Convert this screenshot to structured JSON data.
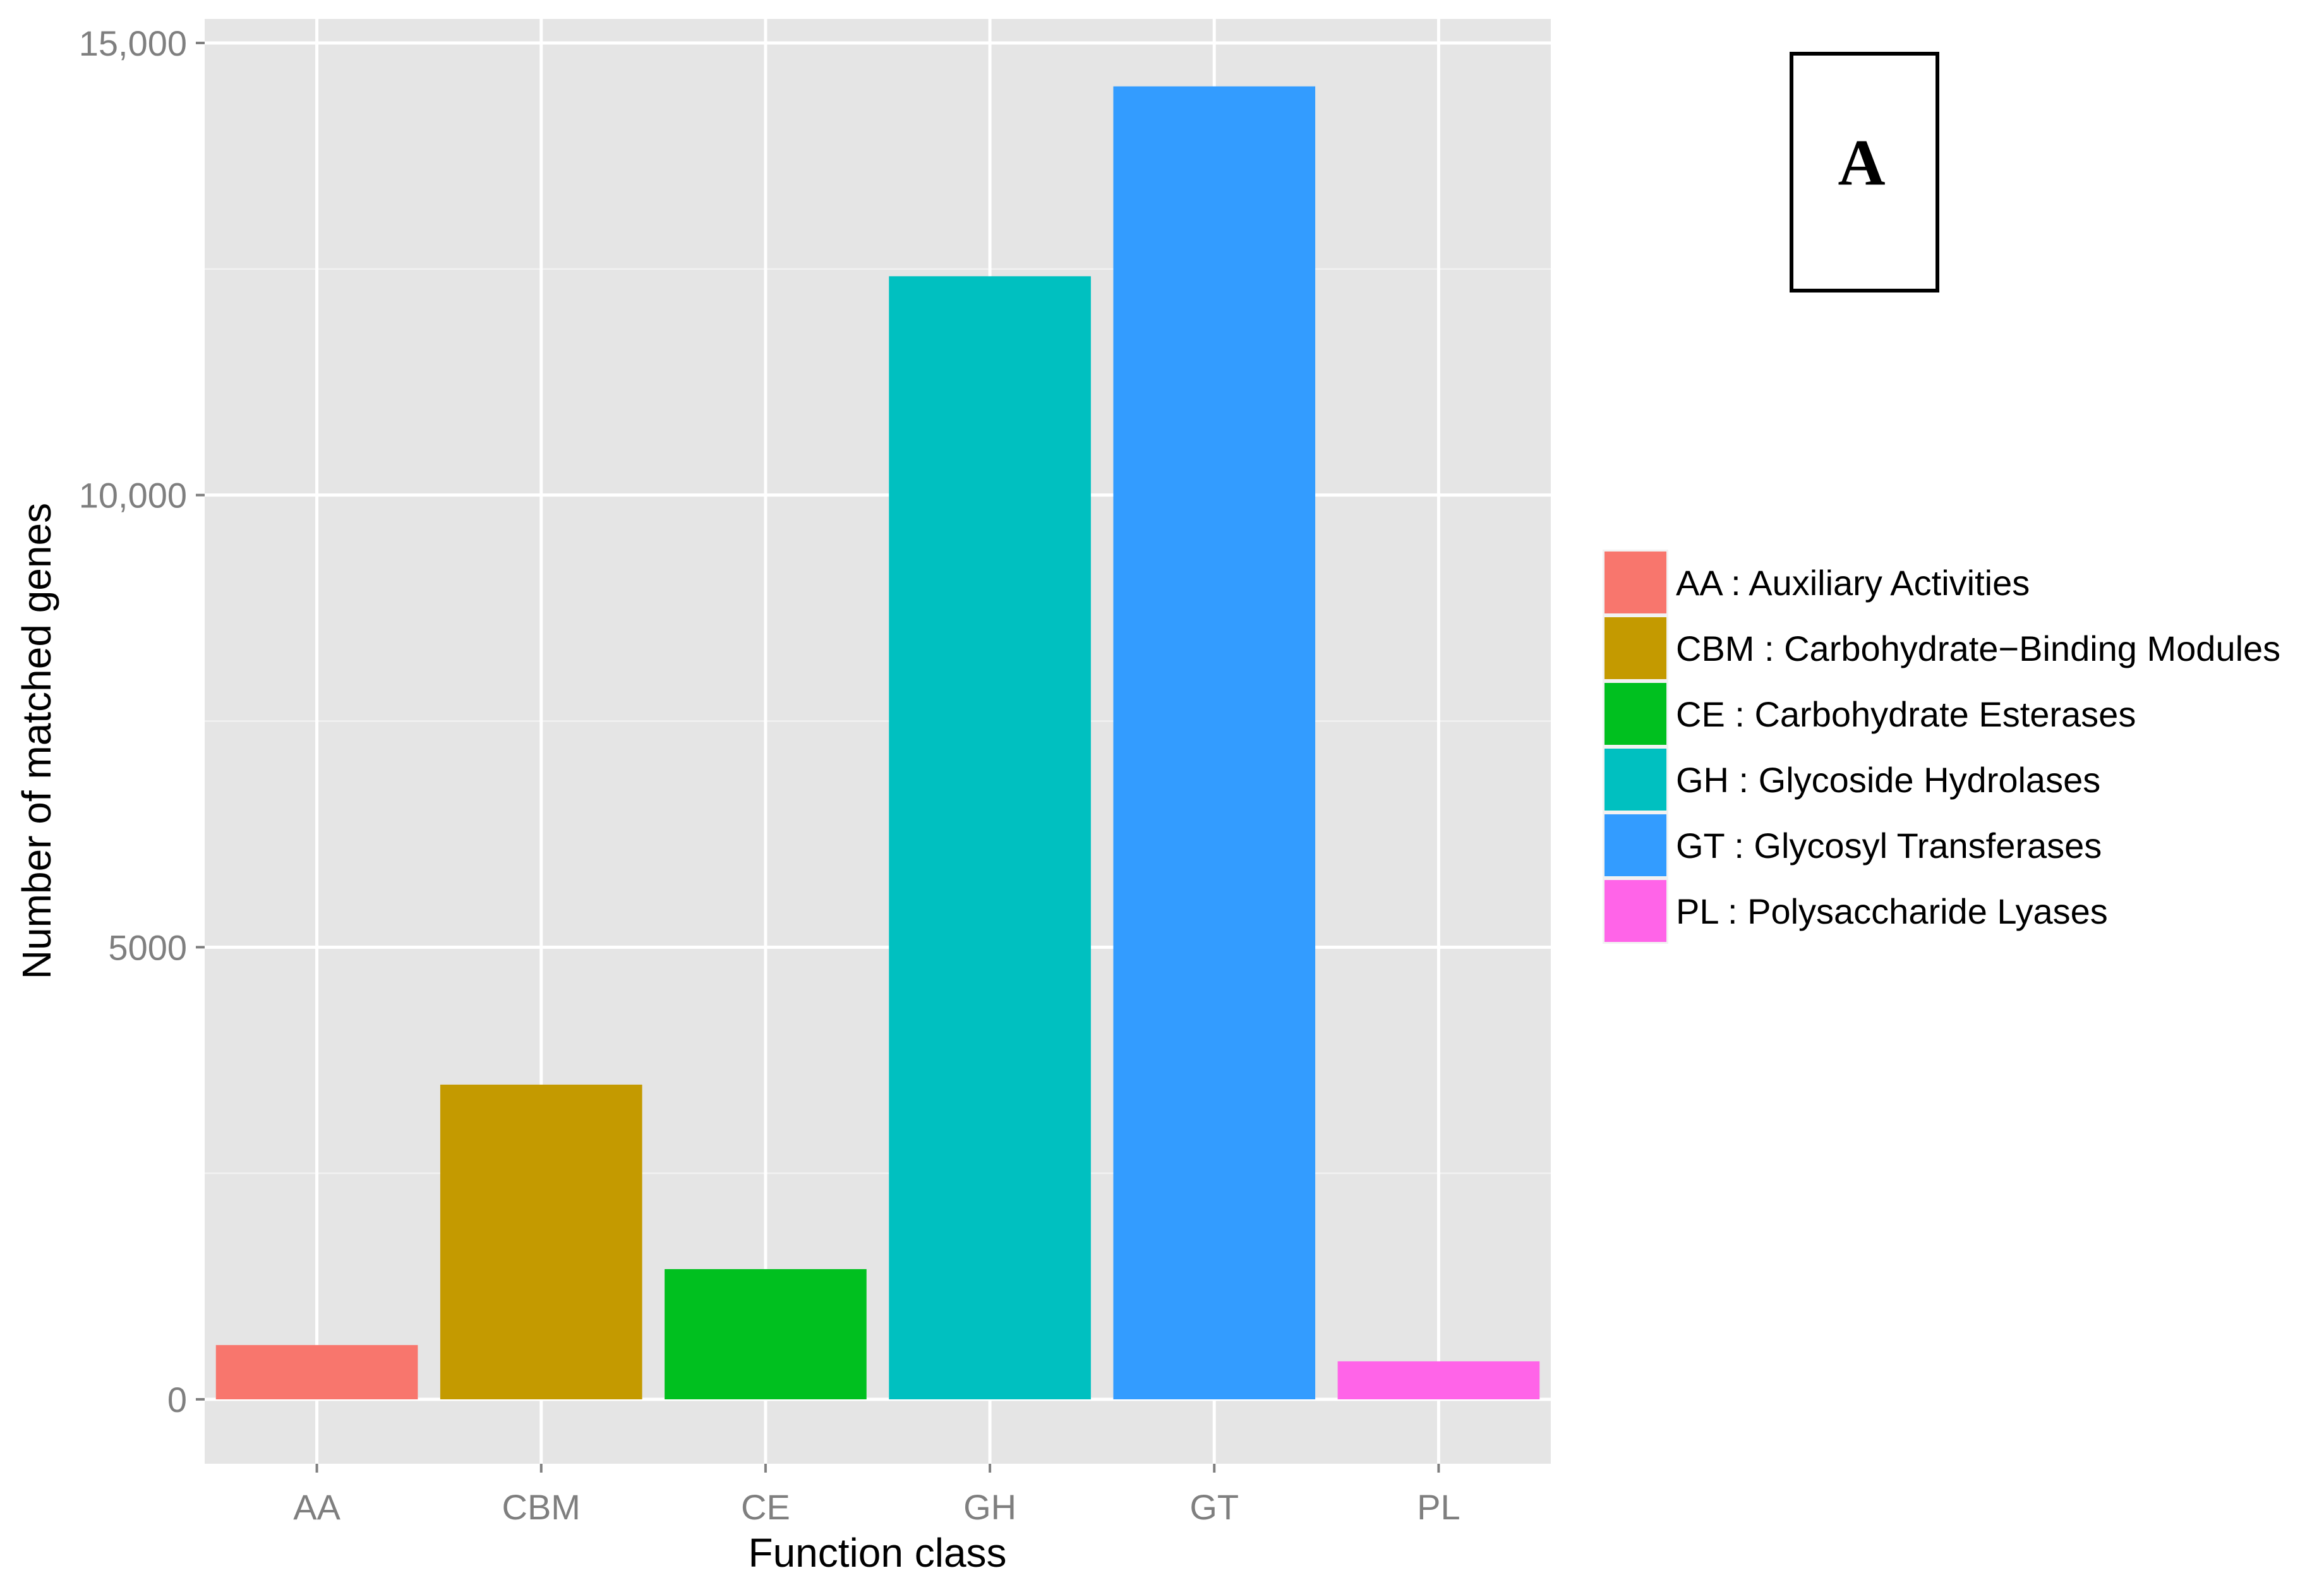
{
  "chart_data": {
    "type": "bar",
    "title": "",
    "xlabel": "Function class",
    "ylabel": "Number of matched genes",
    "categories": [
      "AA",
      "CBM",
      "CE",
      "GH",
      "GT",
      "PL"
    ],
    "values": [
      600,
      3480,
      1440,
      12420,
      14520,
      420
    ],
    "colors": [
      "#F8766D",
      "#C49A00",
      "#00C01F",
      "#00C0C0",
      "#339CFF",
      "#FF64E8"
    ],
    "ylim": [
      -700,
      15250
    ],
    "yticks": [
      {
        "value": 0,
        "label": "0"
      },
      {
        "value": 5000,
        "label": "5000"
      },
      {
        "value": 10000,
        "label": "10,000"
      },
      {
        "value": 15000,
        "label": "15,000"
      }
    ],
    "grid": true,
    "legend_position": "right",
    "legend": [
      {
        "label": "AA : Auxiliary Activities",
        "color": "#F8766D"
      },
      {
        "label": "CBM : Carbohydrate−Binding Modules",
        "color": "#C49A00"
      },
      {
        "label": "CE : Carbohydrate Esterases",
        "color": "#00C01F"
      },
      {
        "label": "GH : Glycoside Hydrolases",
        "color": "#00C0C0"
      },
      {
        "label": "GT : Glycosyl Transferases",
        "color": "#339CFF"
      },
      {
        "label": "PL : Polysaccharide Lyases",
        "color": "#FF64E8"
      }
    ],
    "panel_label": "A"
  }
}
